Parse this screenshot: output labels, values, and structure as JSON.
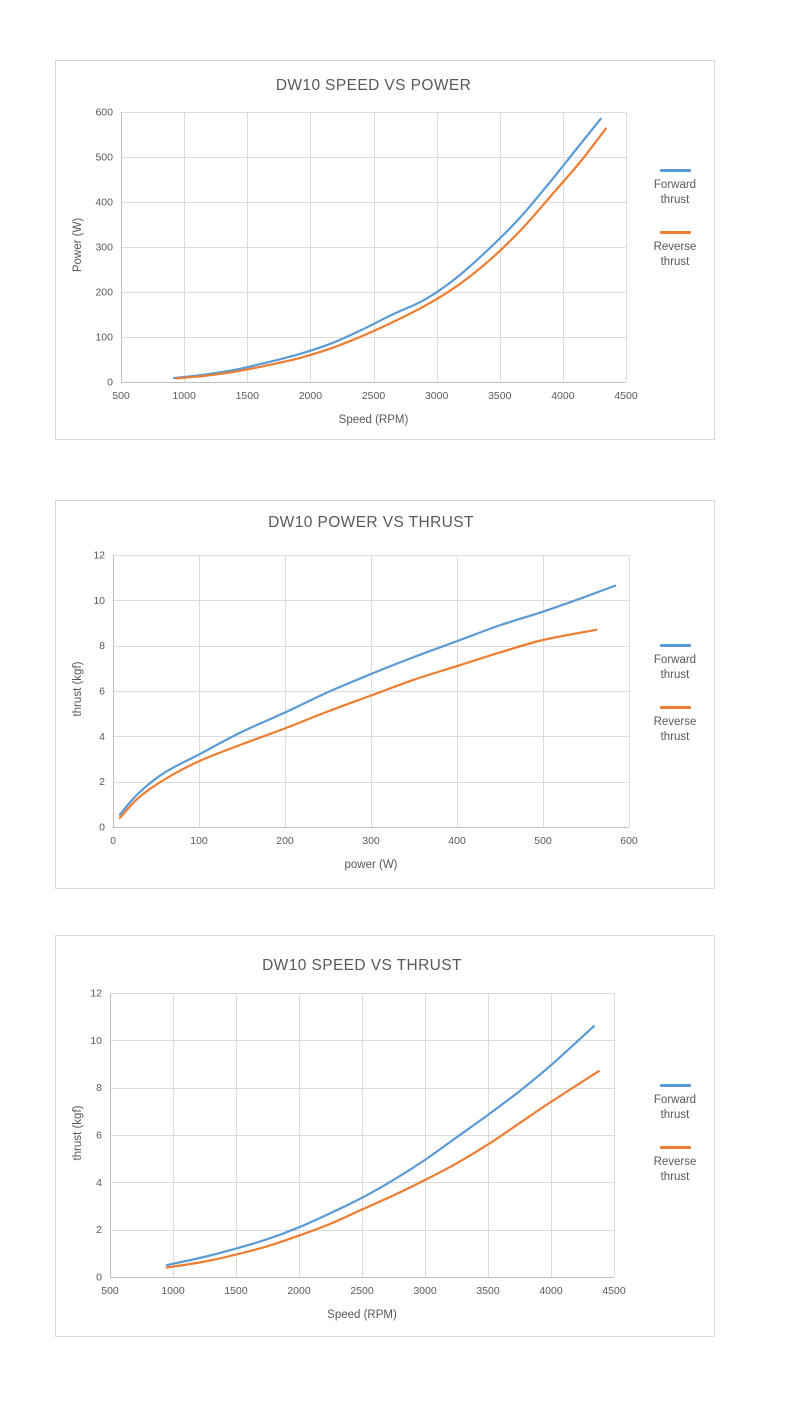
{
  "colors": {
    "forward": "#5B9BD5",
    "reverse": "#ED7D31",
    "grid": "#dcdcdc",
    "axis": "#c0c0c0",
    "text": "#595959"
  },
  "chart_data": [
    {
      "type": "line",
      "title": "DW10 SPEED VS POWER",
      "xlabel": "Speed (RPM)",
      "ylabel": "Power (W)",
      "xlim": [
        500,
        4500
      ],
      "ylim": [
        0,
        600
      ],
      "xticks": [
        500,
        1000,
        1500,
        2000,
        2500,
        3000,
        3500,
        4000,
        4500
      ],
      "yticks": [
        0,
        100,
        200,
        300,
        400,
        500,
        600
      ],
      "grid": true,
      "legend_position": "right",
      "series": [
        {
          "name": "Forward thrust",
          "color_key": "forward",
          "points": [
            [
              920,
              9
            ],
            [
              1150,
              16
            ],
            [
              1400,
              27
            ],
            [
              1650,
              43
            ],
            [
              1900,
              61
            ],
            [
              2150,
              84
            ],
            [
              2400,
              115
            ],
            [
              2650,
              150
            ],
            [
              2900,
              182
            ],
            [
              3150,
              230
            ],
            [
              3400,
              292
            ],
            [
              3650,
              362
            ],
            [
              3900,
              445
            ],
            [
              4100,
              515
            ],
            [
              4300,
              585
            ]
          ]
        },
        {
          "name": "Reverse thrust",
          "color_key": "reverse",
          "points": [
            [
              940,
              8
            ],
            [
              1175,
              14
            ],
            [
              1425,
              24
            ],
            [
              1675,
              38
            ],
            [
              1925,
              54
            ],
            [
              2175,
              76
            ],
            [
              2425,
              104
            ],
            [
              2675,
              136
            ],
            [
              2925,
              172
            ],
            [
              3175,
              216
            ],
            [
              3425,
              272
            ],
            [
              3675,
              340
            ],
            [
              3925,
              420
            ],
            [
              4140,
              490
            ],
            [
              4340,
              563
            ]
          ]
        }
      ]
    },
    {
      "type": "line",
      "title": "DW10 POWER VS THRUST",
      "xlabel": "power (W)",
      "ylabel": "thrust (kgf)",
      "xlim": [
        0,
        600
      ],
      "ylim": [
        0,
        12
      ],
      "xticks": [
        0,
        100,
        200,
        300,
        400,
        500,
        600
      ],
      "yticks": [
        0,
        2,
        4,
        6,
        8,
        10,
        12
      ],
      "grid": true,
      "legend_position": "right",
      "series": [
        {
          "name": "Forward thrust",
          "color_key": "forward",
          "points": [
            [
              8,
              0.55
            ],
            [
              30,
              1.5
            ],
            [
              60,
              2.4
            ],
            [
              100,
              3.2
            ],
            [
              150,
              4.2
            ],
            [
              200,
              5.05
            ],
            [
              250,
              5.95
            ],
            [
              300,
              6.75
            ],
            [
              350,
              7.5
            ],
            [
              400,
              8.2
            ],
            [
              450,
              8.9
            ],
            [
              500,
              9.5
            ],
            [
              545,
              10.1
            ],
            [
              584,
              10.65
            ]
          ]
        },
        {
          "name": "Reverse thrust",
          "color_key": "reverse",
          "points": [
            [
              8,
              0.4
            ],
            [
              30,
              1.3
            ],
            [
              60,
              2.1
            ],
            [
              100,
              2.9
            ],
            [
              150,
              3.65
            ],
            [
              200,
              4.35
            ],
            [
              250,
              5.1
            ],
            [
              300,
              5.8
            ],
            [
              350,
              6.5
            ],
            [
              400,
              7.1
            ],
            [
              450,
              7.7
            ],
            [
              500,
              8.25
            ],
            [
              562,
              8.7
            ]
          ]
        }
      ]
    },
    {
      "type": "line",
      "title": "DW10 SPEED VS THRUST",
      "xlabel": "Speed (RPM)",
      "ylabel": "thrust (kgf)",
      "xlim": [
        500,
        4500
      ],
      "ylim": [
        0,
        12
      ],
      "xticks": [
        500,
        1000,
        1500,
        2000,
        2500,
        3000,
        3500,
        4000,
        4500
      ],
      "yticks": [
        0,
        2,
        4,
        6,
        8,
        10,
        12
      ],
      "grid": true,
      "legend_position": "right",
      "series": [
        {
          "name": "Forward thrust",
          "color_key": "forward",
          "points": [
            [
              950,
              0.5
            ],
            [
              1250,
              0.85
            ],
            [
              1500,
              1.2
            ],
            [
              1750,
              1.6
            ],
            [
              2000,
              2.1
            ],
            [
              2250,
              2.7
            ],
            [
              2500,
              3.35
            ],
            [
              2750,
              4.1
            ],
            [
              3000,
              4.95
            ],
            [
              3250,
              5.9
            ],
            [
              3500,
              6.85
            ],
            [
              3750,
              7.85
            ],
            [
              4000,
              8.95
            ],
            [
              4340,
              10.6
            ]
          ]
        },
        {
          "name": "Reverse thrust",
          "color_key": "reverse",
          "points": [
            [
              950,
              0.4
            ],
            [
              1250,
              0.65
            ],
            [
              1500,
              0.95
            ],
            [
              1750,
              1.3
            ],
            [
              2000,
              1.75
            ],
            [
              2250,
              2.25
            ],
            [
              2500,
              2.85
            ],
            [
              2750,
              3.45
            ],
            [
              3000,
              4.1
            ],
            [
              3250,
              4.8
            ],
            [
              3500,
              5.6
            ],
            [
              3750,
              6.5
            ],
            [
              4000,
              7.4
            ],
            [
              4380,
              8.7
            ]
          ]
        }
      ]
    }
  ]
}
